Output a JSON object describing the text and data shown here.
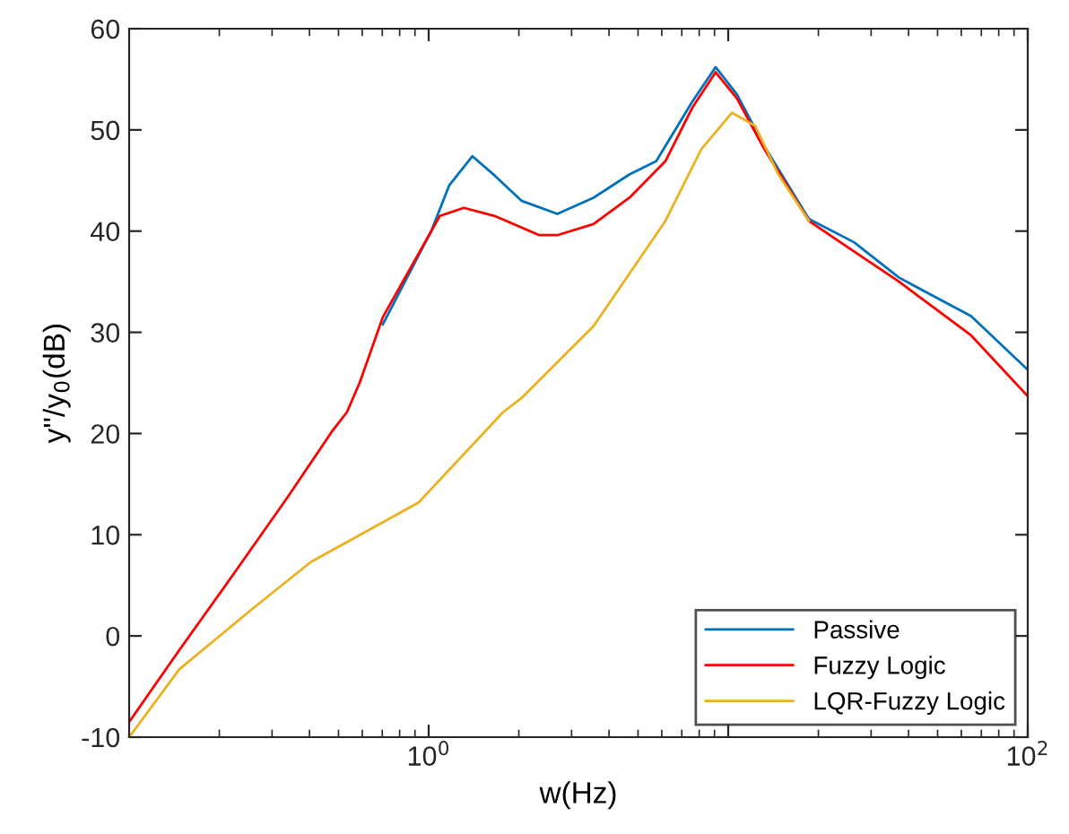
{
  "chart_data": {
    "type": "line",
    "xlabel": "w(Hz)",
    "ylabel": "y''/y$_{0}$(dB)",
    "log": "x",
    "xlim": [
      0.1,
      100
    ],
    "xticks": [
      {
        "value": 1,
        "label": "10$^{0}$"
      },
      {
        "value": 10,
        "label": null
      },
      {
        "value": 100,
        "label": "10$^{2}$"
      }
    ],
    "ylim": [
      -10,
      60
    ],
    "yticks": [
      -10,
      0,
      10,
      20,
      30,
      40,
      50,
      60
    ],
    "grid": false,
    "legend": "bottom right",
    "marker": "none",
    "line_style": "solid",
    "series": [
      {
        "name": "Passive",
        "color": "#0072bd",
        "x": [
          0.703,
          1.02,
          1.17,
          1.4,
          1.66,
          2.04,
          2.69,
          3.55,
          4.68,
          5.75,
          7.59,
          9.08,
          10.7,
          13.2,
          18.6,
          26.3,
          37.2,
          64.7,
          100
        ],
        "values": [
          30.8,
          40,
          44.5,
          47.4,
          45.5,
          43.0,
          41.7,
          43.3,
          45.6,
          46.9,
          52.8,
          56.2,
          53.5,
          48.4,
          41.2,
          38.9,
          35.4,
          31.6,
          26.3
        ]
      },
      {
        "name": "Fuzzy Logic",
        "color": "#ff0000",
        "x": [
          0.1,
          0.147,
          0.223,
          0.338,
          0.478,
          0.533,
          0.588,
          0.703,
          1.02,
          1.09,
          1.31,
          1.66,
          2.34,
          2.69,
          3.55,
          4.68,
          6.17,
          7.59,
          9.08,
          10.7,
          13.2,
          18.6,
          26.3,
          37.2,
          64.7,
          100
        ],
        "values": [
          -8.5,
          -1.4,
          6.1,
          13.7,
          20.3,
          22.1,
          25,
          31.5,
          40,
          41.5,
          42.3,
          41.5,
          39.6,
          39.6,
          40.7,
          43.3,
          46.9,
          52.2,
          55.7,
          53.1,
          48.1,
          41.0,
          38.0,
          35.0,
          29.7,
          23.7
        ]
      },
      {
        "name": "LQR-Fuzzy Logic",
        "color": "#edb120",
        "x": [
          0.1,
          0.147,
          0.256,
          0.404,
          0.927,
          1.77,
          2.04,
          3.55,
          6.17,
          8.13,
          10.3,
          12.3,
          14.7,
          18.6
        ],
        "values": [
          -10,
          -3.3,
          2.6,
          7.3,
          13.2,
          22.1,
          23.5,
          30.6,
          41.0,
          48.1,
          51.7,
          50.4,
          45.6,
          41.0
        ]
      }
    ]
  }
}
